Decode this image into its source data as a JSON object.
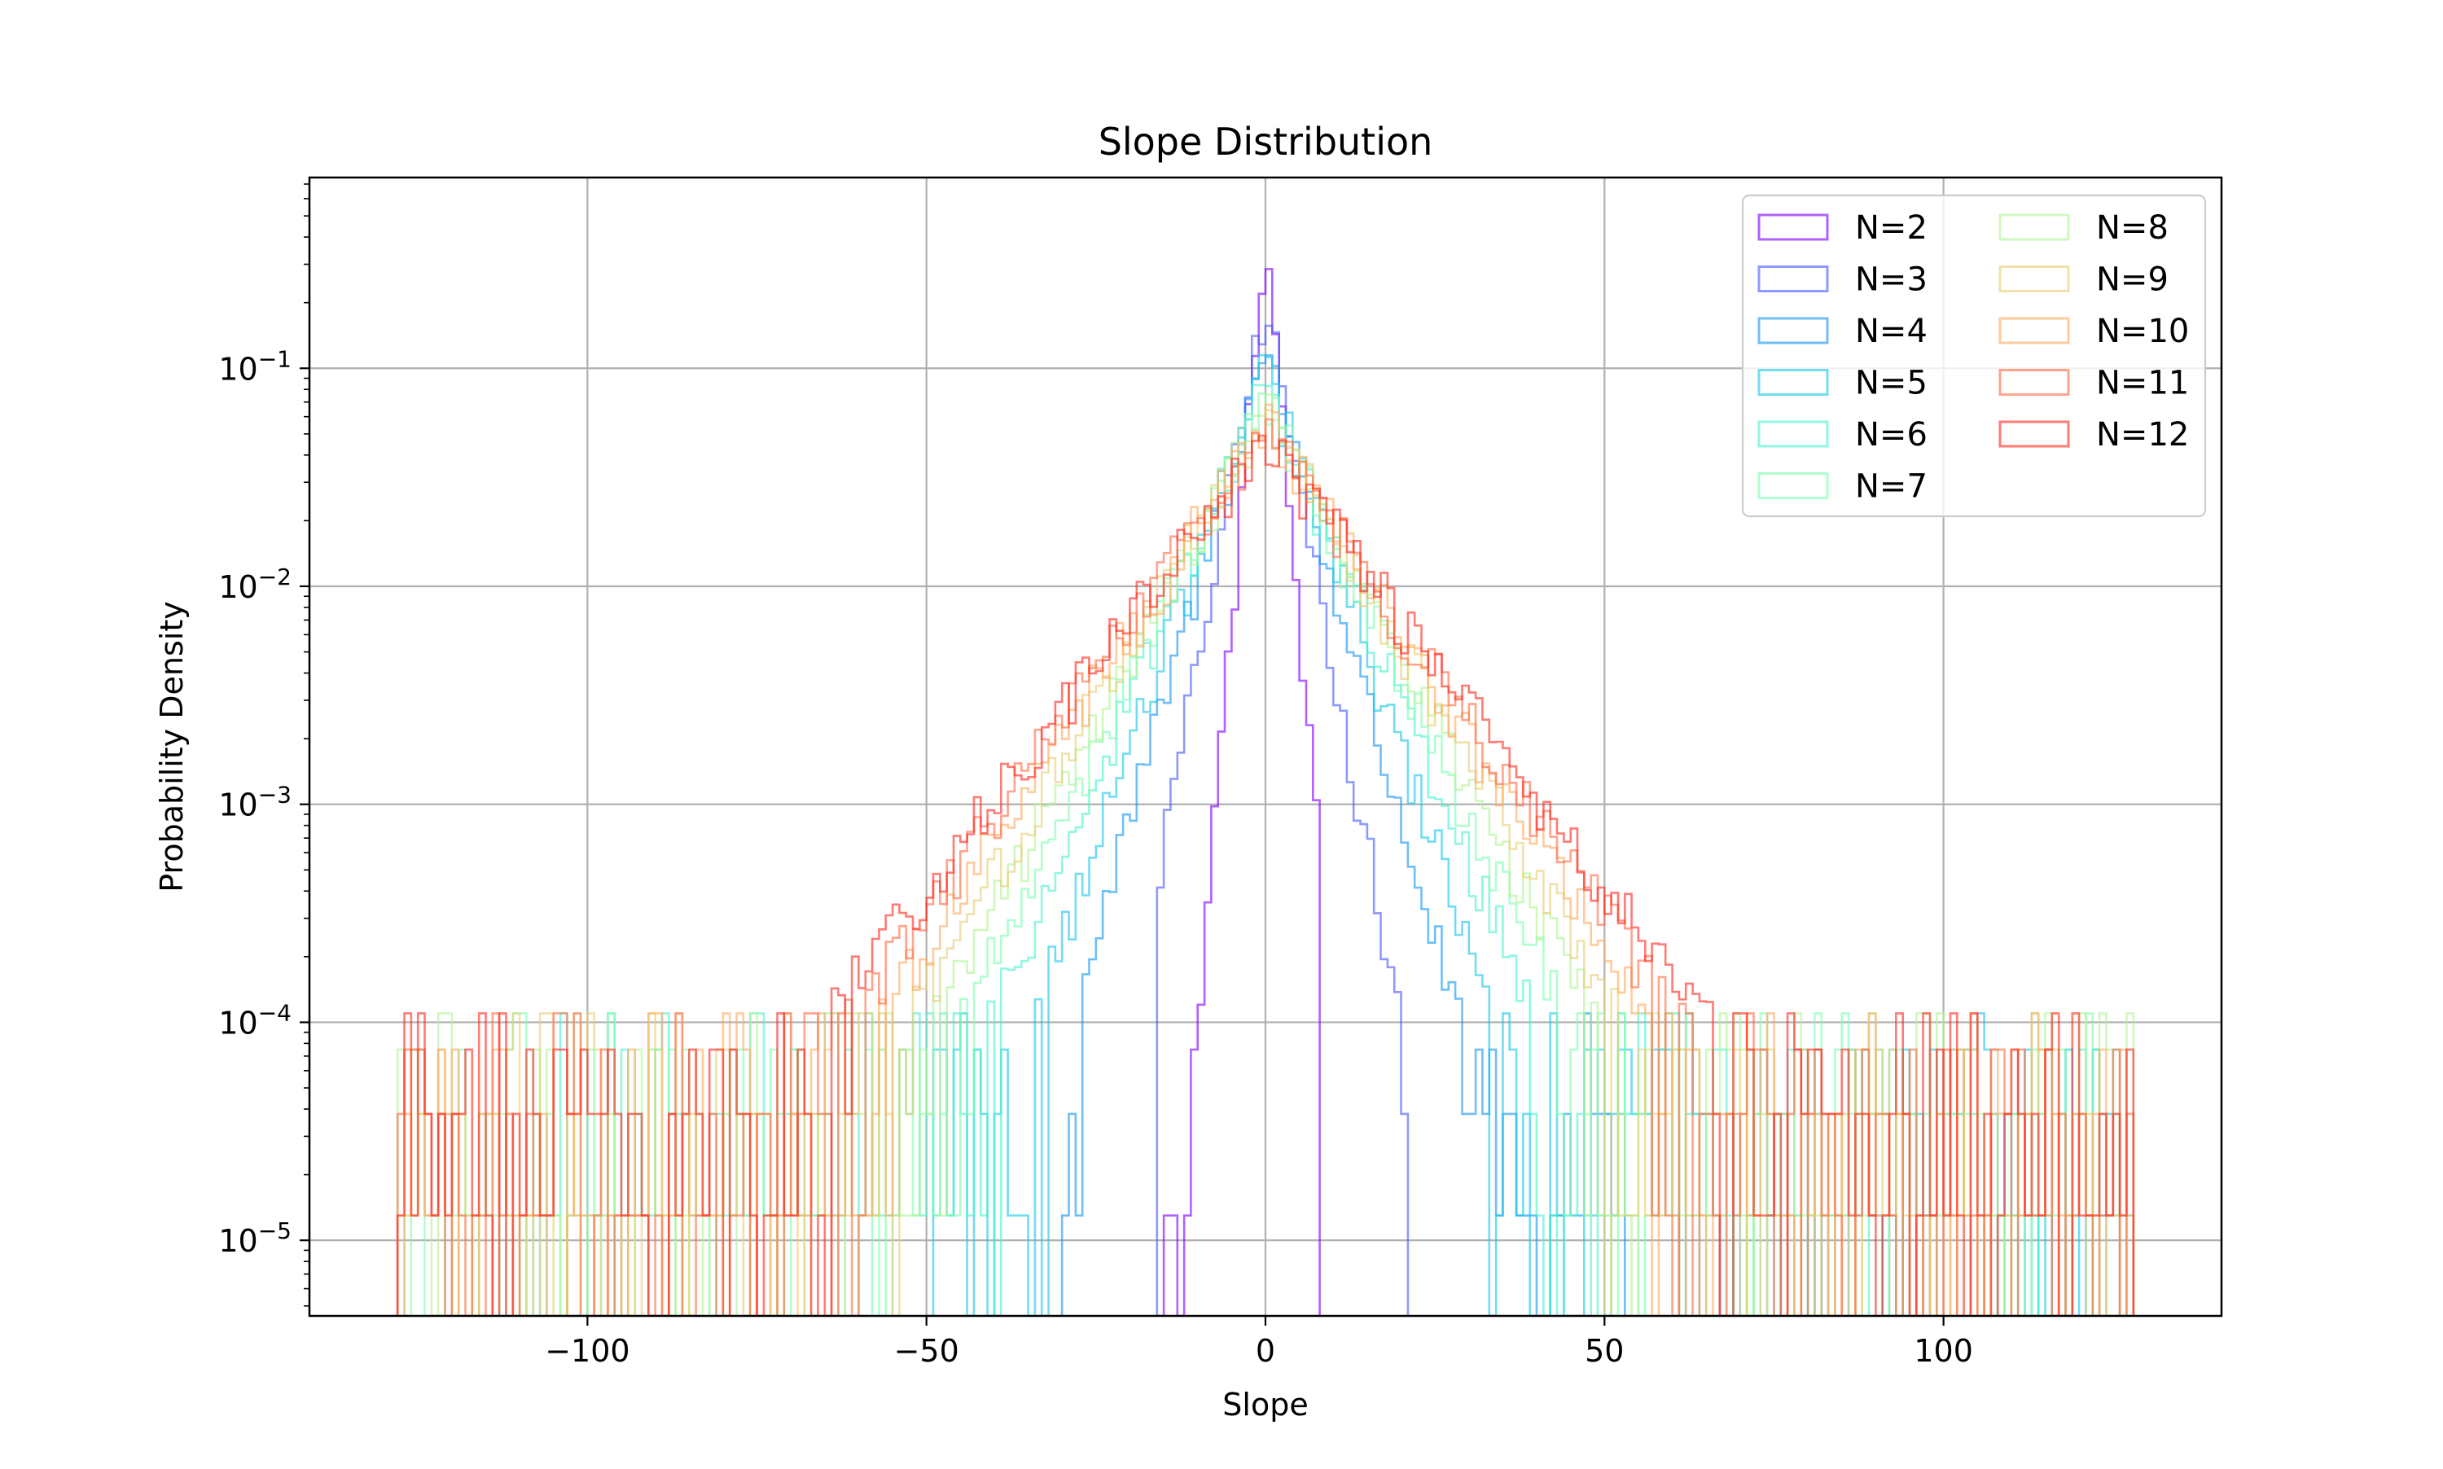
{
  "chart_data": {
    "type": "histogram",
    "title": "Slope Distribution",
    "xlabel": "Slope",
    "ylabel": "Probability Density",
    "xlim": [
      -141,
      141
    ],
    "ylim": [
      4.5e-06,
      0.75
    ],
    "yscale": "log",
    "grid": true,
    "legend_position": "top-right",
    "legend_columns": 2,
    "x_ticks": [
      -100,
      -50,
      0,
      50,
      100
    ],
    "x_tick_labels": [
      "−100",
      "−50",
      "0",
      "50",
      "100"
    ],
    "y_ticks": [
      1e-05,
      0.0001,
      0.001,
      0.01,
      0.1
    ],
    "y_tick_labels": [
      {
        "base": "10",
        "exp": "−5"
      },
      {
        "base": "10",
        "exp": "−4"
      },
      {
        "base": "10",
        "exp": "−3"
      },
      {
        "base": "10",
        "exp": "−2"
      },
      {
        "base": "10",
        "exp": "−1"
      }
    ],
    "series": [
      {
        "name": "N=2",
        "color": "#8000ff",
        "peak": 0.42,
        "scale": 1.2,
        "x_min": -16,
        "x_max": 8,
        "tail_min": -16,
        "tail_max": 8
      },
      {
        "name": "N=3",
        "color": "#4a5bfc",
        "peak": 0.2,
        "scale": 2.6,
        "x_min": -16,
        "x_max": 21,
        "tail_min": -14,
        "tail_max": 20
      },
      {
        "name": "N=4",
        "color": "#1996f3",
        "peak": 0.12,
        "scale": 4.0,
        "x_min": -30,
        "x_max": 53,
        "tail_min": -40,
        "tail_max": 53
      },
      {
        "name": "N=5",
        "color": "#1cc6e6",
        "peak": 0.095,
        "scale": 5.0,
        "x_min": -50,
        "x_max": 128,
        "tail_min": -50,
        "tail_max": 128
      },
      {
        "name": "N=6",
        "color": "#4df0d1",
        "peak": 0.08,
        "scale": 6.0,
        "x_min": -108,
        "x_max": 128,
        "tail_min": -108,
        "tail_max": 128
      },
      {
        "name": "N=7",
        "color": "#80feb3",
        "peak": 0.07,
        "scale": 6.8,
        "x_min": -128,
        "x_max": 128,
        "tail_min": -128,
        "tail_max": 128
      },
      {
        "name": "N=8",
        "color": "#b2f396",
        "peak": 0.065,
        "scale": 7.5,
        "x_min": -128,
        "x_max": 128,
        "tail_min": -128,
        "tail_max": 128
      },
      {
        "name": "N=9",
        "color": "#e6cf78",
        "peak": 0.06,
        "scale": 8.2,
        "x_min": -128,
        "x_max": 128,
        "tail_min": -128,
        "tail_max": 128
      },
      {
        "name": "N=10",
        "color": "#ffab63",
        "peak": 0.055,
        "scale": 9.0,
        "x_min": -128,
        "x_max": 128,
        "tail_min": -128,
        "tail_max": 128
      },
      {
        "name": "N=11",
        "color": "#ff6c47",
        "peak": 0.05,
        "scale": 9.8,
        "x_min": -128,
        "x_max": 128,
        "tail_min": -128,
        "tail_max": 128
      },
      {
        "name": "N=12",
        "color": "#ff2a20",
        "peak": 0.045,
        "scale": 10.6,
        "x_min": -128,
        "x_max": 128,
        "tail_min": -128,
        "tail_max": 128
      }
    ]
  }
}
